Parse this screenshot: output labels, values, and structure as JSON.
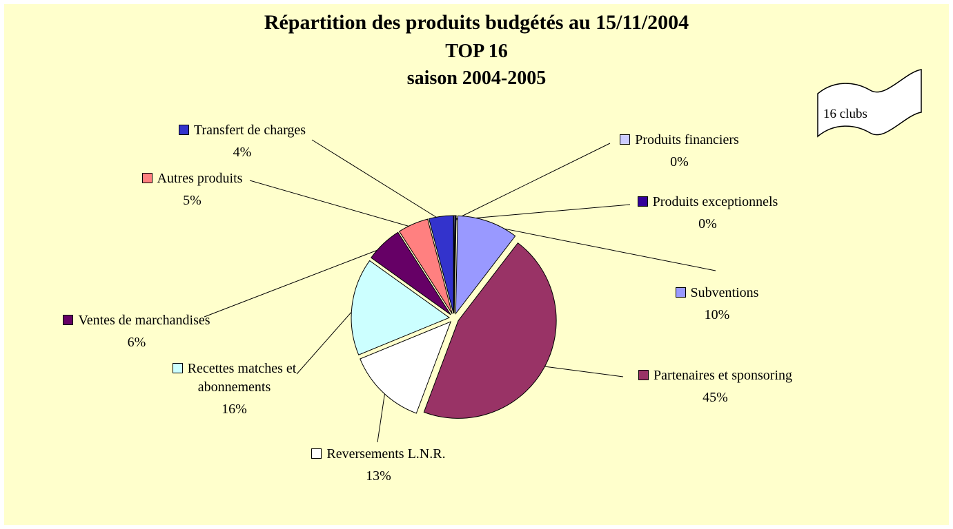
{
  "background_color": "#FFFFCC",
  "chart_data": {
    "type": "pie",
    "title": "Répartition des produits budgétés au 15/11/2004",
    "subtitle": [
      "TOP 16",
      "saison 2004-2005"
    ],
    "annotation": "16 clubs",
    "direction": "clockwise",
    "start": "top",
    "legend_position": "callout-labels",
    "slices": [
      {
        "id": "produits-financiers",
        "label": "Produits financiers",
        "value": 0,
        "pct_label": "0%",
        "color": "#CCCCFF"
      },
      {
        "id": "produits-exceptionnels",
        "label": "Produits exceptionnels",
        "value": 0,
        "pct_label": "0%",
        "color": "#330099"
      },
      {
        "id": "subventions",
        "label": "Subventions",
        "value": 10,
        "pct_label": "10%",
        "color": "#9999FF"
      },
      {
        "id": "partenaires-sponsoring",
        "label": "Partenaires et sponsoring",
        "value": 45,
        "pct_label": "45%",
        "color": "#993366"
      },
      {
        "id": "reversements-lnr",
        "label": "Reversements L.N.R.",
        "value": 13,
        "pct_label": "13%",
        "color": "#FFFFFF"
      },
      {
        "id": "recettes-matches",
        "label": "Recettes matches et abonnements",
        "value": 16,
        "pct_label": "16%",
        "color": "#CCFFFF"
      },
      {
        "id": "ventes-marchandises",
        "label": "Ventes de marchandises",
        "value": 6,
        "pct_label": "6%",
        "color": "#660066"
      },
      {
        "id": "autres-produits",
        "label": "Autres produits",
        "value": 5,
        "pct_label": "5%",
        "color": "#FF8080"
      },
      {
        "id": "transfert-charges",
        "label": "Transfert de charges",
        "value": 4,
        "pct_label": "4%",
        "color": "#3333CC"
      }
    ]
  }
}
